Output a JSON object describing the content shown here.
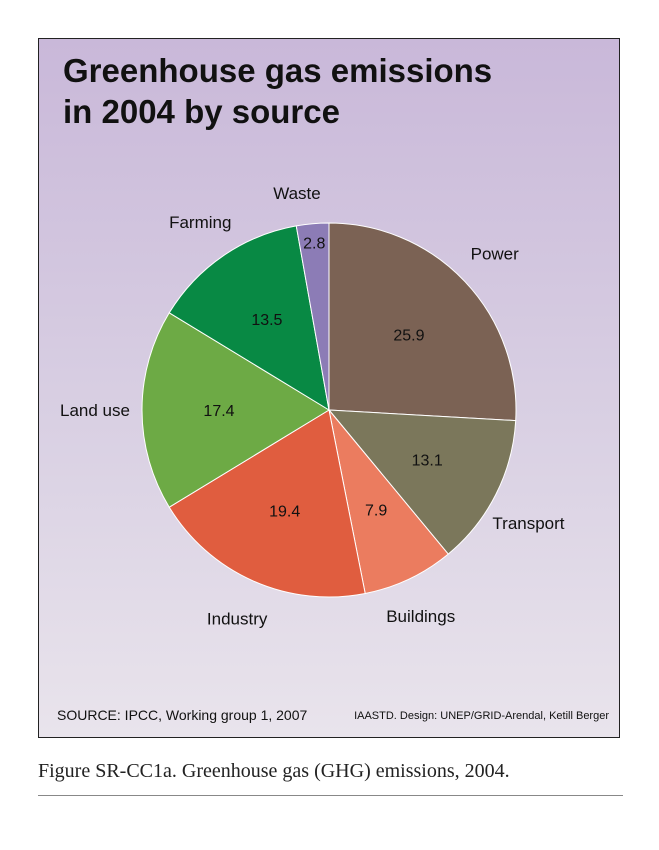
{
  "chart_data": {
    "type": "pie",
    "title_lines": [
      "Greenhouse gas emissions",
      "in 2004 by source"
    ],
    "slices": [
      {
        "label": "Power",
        "value": 25.9,
        "value_label": "25.9",
        "color": "#7b6254"
      },
      {
        "label": "Transport",
        "value": 13.1,
        "value_label": "13.1",
        "color": "#7b775b"
      },
      {
        "label": "Buildings",
        "value": 7.9,
        "value_label": "7.9",
        "color": "#eb7c5f"
      },
      {
        "label": "Industry",
        "value": 19.4,
        "value_label": "19.4",
        "color": "#e05d3f"
      },
      {
        "label": "Land use",
        "value": 17.4,
        "value_label": "17.4",
        "color": "#6daa45"
      },
      {
        "label": "Farming",
        "value": 13.5,
        "value_label": "13.5",
        "color": "#088944"
      },
      {
        "label": "Waste",
        "value": 2.8,
        "value_label": "2.8",
        "color": "#8c7cb6"
      }
    ],
    "start_angle": "12 o'clock",
    "direction": "clockwise"
  },
  "source": "SOURCE: IPCC, Working group 1, 2007",
  "credit": "IAASTD. Design: UNEP/GRID-Arendal, Ketill Berger",
  "caption": "Figure SR-CC1a. Greenhouse gas (GHG) emissions, 2004."
}
